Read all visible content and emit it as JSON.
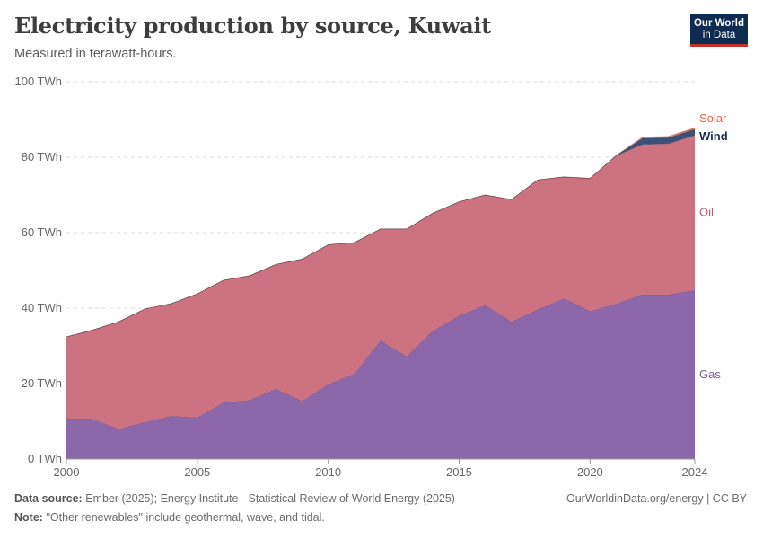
{
  "header": {
    "title": "Electricity production by source, Kuwait",
    "subtitle": "Measured in terawatt-hours.",
    "logo_line1": "Our World",
    "logo_line2": "in Data"
  },
  "footer": {
    "source_label": "Data source:",
    "source_text": "Ember (2025); Energy Institute - Statistical Review of World Energy (2025)",
    "note_label": "Note:",
    "note_text": "\"Other renewables\" include geothermal, wave, and tidal.",
    "credit": "OurWorldinData.org/energy | CC BY"
  },
  "chart_data": {
    "type": "area",
    "stacked": true,
    "x": [
      2000,
      2001,
      2002,
      2003,
      2004,
      2005,
      2006,
      2007,
      2008,
      2009,
      2010,
      2011,
      2012,
      2013,
      2014,
      2015,
      2016,
      2017,
      2018,
      2019,
      2020,
      2021,
      2022,
      2023,
      2024
    ],
    "series": [
      {
        "name": "Gas",
        "color": "#8c67a9",
        "values": [
          10.6,
          10.6,
          8.0,
          9.8,
          11.4,
          11.0,
          15.0,
          15.6,
          18.6,
          15.4,
          19.8,
          22.6,
          31.4,
          27.2,
          34.0,
          38.0,
          40.8,
          36.4,
          39.6,
          42.6,
          39.2,
          41.2,
          43.6,
          43.6,
          44.8
        ]
      },
      {
        "name": "Oil",
        "color": "#cc7281",
        "values": [
          21.8,
          23.6,
          28.4,
          30.0,
          29.8,
          32.8,
          32.4,
          33.0,
          33.0,
          37.6,
          37.0,
          34.8,
          29.6,
          33.8,
          31.2,
          30.2,
          29.2,
          32.4,
          34.4,
          32.2,
          35.2,
          39.2,
          39.8,
          40.0,
          41.0
        ]
      },
      {
        "name": "Wind",
        "color": "#3b517a",
        "values": [
          0,
          0,
          0,
          0,
          0,
          0,
          0,
          0,
          0,
          0,
          0,
          0,
          0,
          0,
          0,
          0,
          0,
          0,
          0,
          0,
          0,
          0.05,
          1.6,
          1.6,
          1.6
        ]
      },
      {
        "name": "Solar",
        "color": "#e8795a",
        "values": [
          0,
          0,
          0,
          0,
          0,
          0,
          0,
          0,
          0,
          0,
          0,
          0,
          0,
          0,
          0,
          0,
          0,
          0,
          0,
          0,
          0,
          0.05,
          0.3,
          0.35,
          0.4
        ]
      }
    ],
    "label_colors": {
      "Gas": "#7d5a9e",
      "Oil": "#c0596d",
      "Wind": "#1a2d55",
      "Solar": "#e0684a"
    },
    "ylim": [
      0,
      100
    ],
    "yticks": [
      0,
      20,
      40,
      60,
      80,
      100
    ],
    "ytick_labels": [
      "0 TWh",
      "20 TWh",
      "40 TWh",
      "60 TWh",
      "80 TWh",
      "100 TWh"
    ],
    "xticks": [
      2000,
      2005,
      2010,
      2015,
      2020,
      2024
    ],
    "xtick_labels": [
      "2000",
      "2005",
      "2010",
      "2015",
      "2020",
      "2024"
    ],
    "grid": true,
    "legend": "right-inline"
  }
}
